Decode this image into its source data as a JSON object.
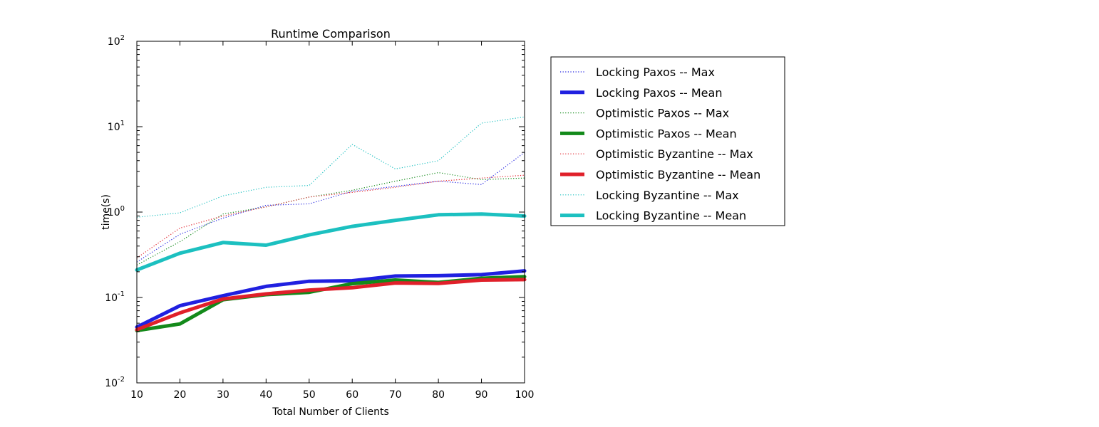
{
  "chart_data": {
    "type": "line",
    "title": "Runtime Comparison",
    "xlabel": "Total Number of Clients",
    "ylabel": "time(s)",
    "x": [
      10,
      20,
      30,
      40,
      50,
      60,
      70,
      80,
      90,
      100
    ],
    "xlim": [
      10,
      100
    ],
    "ylim": [
      0.01,
      100
    ],
    "yscale": "log",
    "xticks": [
      "10",
      "20",
      "30",
      "40",
      "50",
      "60",
      "70",
      "80",
      "90",
      "100"
    ],
    "yticks": [
      {
        "value": 0.01,
        "base": "10",
        "exp": "-2"
      },
      {
        "value": 0.1,
        "base": "10",
        "exp": "-1"
      },
      {
        "value": 1,
        "base": "10",
        "exp": "0"
      },
      {
        "value": 10,
        "base": "10",
        "exp": "1"
      },
      {
        "value": 100,
        "base": "10",
        "exp": "2"
      }
    ],
    "grid": false,
    "legend_position": "outside-right",
    "series": [
      {
        "name": "Locking Paxos -- Max",
        "style": "dotted",
        "color": "#2020e0",
        "values": [
          0.26,
          0.55,
          0.85,
          1.2,
          1.25,
          1.75,
          2.0,
          2.3,
          2.1,
          5.0
        ]
      },
      {
        "name": "Locking Paxos -- Mean",
        "style": "solid",
        "color": "#2020e0",
        "values": [
          0.045,
          0.08,
          0.105,
          0.135,
          0.155,
          0.157,
          0.178,
          0.18,
          0.185,
          0.205
        ]
      },
      {
        "name": "Optimistic Paxos -- Max",
        "style": "dotted",
        "color": "#138a1a",
        "values": [
          0.24,
          0.45,
          0.95,
          1.15,
          1.5,
          1.8,
          2.3,
          2.9,
          2.4,
          2.5
        ]
      },
      {
        "name": "Optimistic Paxos -- Mean",
        "style": "solid",
        "color": "#138a1a",
        "values": [
          0.041,
          0.049,
          0.094,
          0.108,
          0.115,
          0.145,
          0.16,
          0.15,
          0.168,
          0.175
        ]
      },
      {
        "name": "Optimistic Byzantine -- Max",
        "style": "dotted",
        "color": "#e0202a",
        "values": [
          0.29,
          0.65,
          0.9,
          1.15,
          1.5,
          1.7,
          1.95,
          2.3,
          2.5,
          2.7
        ]
      },
      {
        "name": "Optimistic Byzantine -- Mean",
        "style": "solid",
        "color": "#e0202a",
        "values": [
          0.042,
          0.066,
          0.096,
          0.11,
          0.122,
          0.13,
          0.148,
          0.146,
          0.16,
          0.162
        ]
      },
      {
        "name": "Locking Byzantine -- Max",
        "style": "dotted",
        "color": "#1cc0c0",
        "values": [
          0.87,
          0.98,
          1.55,
          1.95,
          2.05,
          6.2,
          3.2,
          4.0,
          11.0,
          13.0
        ]
      },
      {
        "name": "Locking Byzantine -- Mean",
        "style": "solid",
        "color": "#1cc0c0",
        "values": [
          0.21,
          0.33,
          0.44,
          0.41,
          0.54,
          0.68,
          0.8,
          0.93,
          0.95,
          0.9
        ]
      }
    ]
  }
}
